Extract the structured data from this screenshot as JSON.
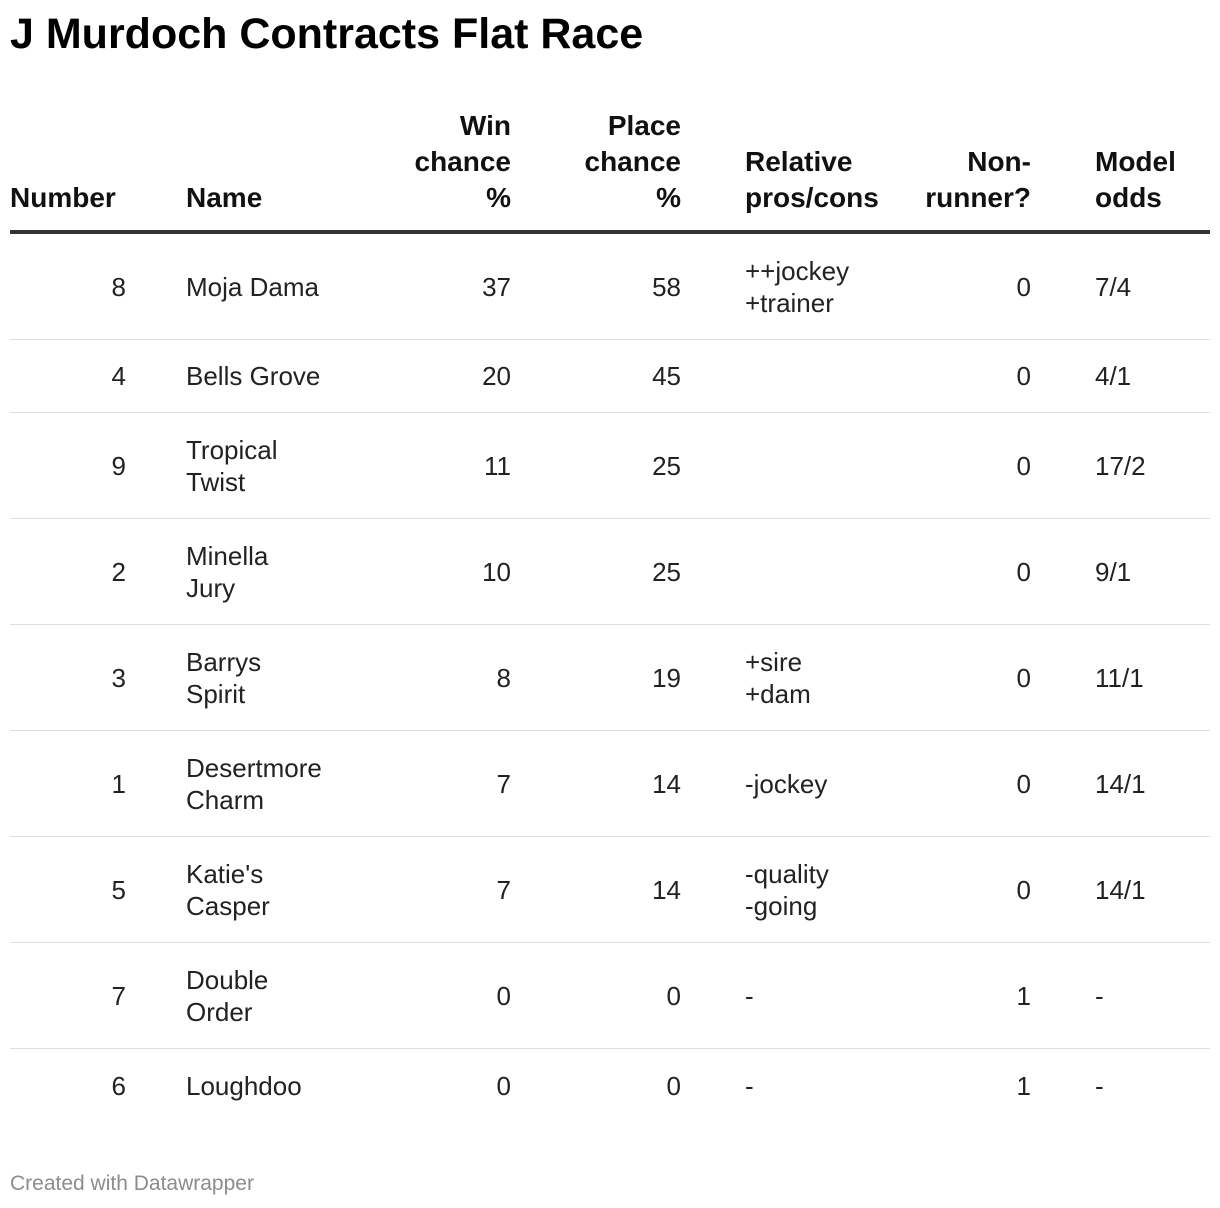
{
  "title": "J Murdoch Contracts Flat Race",
  "footer": "Created with Datawrapper",
  "chart_data": {
    "type": "table",
    "title": "J Murdoch Contracts Flat Race",
    "columns": [
      "Number",
      "Name",
      "Win chance %",
      "Place chance %",
      "Relative pros/cons",
      "Non-runner?",
      "Model odds"
    ],
    "header_lines": {
      "number": [
        "Number"
      ],
      "name": [
        "Name"
      ],
      "win": [
        "Win",
        "chance",
        "%"
      ],
      "place": [
        "Place",
        "chance",
        "%"
      ],
      "rel": [
        "Relative",
        "pros/cons"
      ],
      "nr": [
        "Non-",
        "runner?"
      ],
      "odds": [
        "Model",
        "odds"
      ]
    },
    "rows": [
      {
        "number": "8",
        "name": "Moja Dama",
        "win": 37,
        "place": 58,
        "rel": "++jockey\n+trainer",
        "nr": 0,
        "odds": "7/4"
      },
      {
        "number": "4",
        "name": "Bells Grove",
        "win": 20,
        "place": 45,
        "rel": "",
        "nr": 0,
        "odds": "4/1"
      },
      {
        "number": "9",
        "name": "Tropical\nTwist",
        "win": 11,
        "place": 25,
        "rel": "",
        "nr": 0,
        "odds": "17/2"
      },
      {
        "number": "2",
        "name": "Minella\nJury",
        "win": 10,
        "place": 25,
        "rel": "",
        "nr": 0,
        "odds": "9/1"
      },
      {
        "number": "3",
        "name": "Barrys\nSpirit",
        "win": 8,
        "place": 19,
        "rel": "+sire\n+dam",
        "nr": 0,
        "odds": "11/1"
      },
      {
        "number": "1",
        "name": "Desertmore\nCharm",
        "win": 7,
        "place": 14,
        "rel": "-jockey",
        "nr": 0,
        "odds": "14/1"
      },
      {
        "number": "5",
        "name": "Katie's\nCasper",
        "win": 7,
        "place": 14,
        "rel": "-quality\n-going",
        "nr": 0,
        "odds": "14/1"
      },
      {
        "number": "7",
        "name": "Double\nOrder",
        "win": 0,
        "place": 0,
        "rel": "-",
        "nr": 1,
        "odds": "-"
      },
      {
        "number": "6",
        "name": "Loughdoo",
        "win": 0,
        "place": 0,
        "rel": "-",
        "nr": 1,
        "odds": "-"
      }
    ]
  }
}
